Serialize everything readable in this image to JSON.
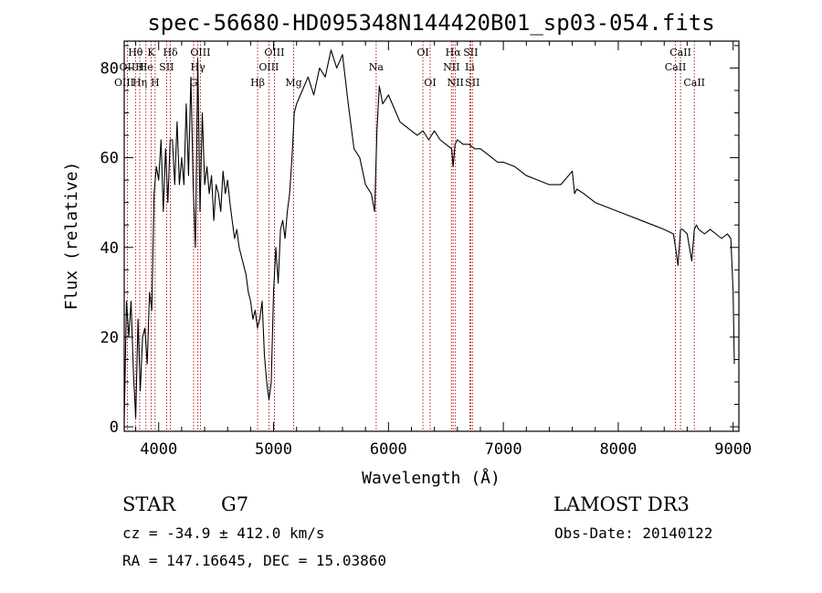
{
  "chart_data": {
    "type": "line",
    "title": "spec-56680-HD095348N144420B01_sp03-054.fits",
    "xlabel": "Wavelength (Å)",
    "ylabel": "Flux (relative)",
    "xlim": [
      3700,
      9050
    ],
    "ylim": [
      -1,
      86
    ],
    "grid": false,
    "x_ticks": [
      4000,
      5000,
      6000,
      7000,
      8000,
      9000
    ],
    "x_tick_labels": [
      "4000",
      "5000",
      "6000",
      "7000",
      "8000",
      "9000"
    ],
    "y_ticks": [
      0,
      20,
      40,
      60,
      80
    ],
    "y_tick_labels": [
      "0",
      "20",
      "40",
      "60",
      "80"
    ],
    "series": [
      {
        "x": [
          3700,
          3720,
          3740,
          3760,
          3780,
          3800,
          3820,
          3840,
          3860,
          3880,
          3900,
          3920,
          3940,
          3960,
          3980,
          4000,
          4020,
          4040,
          4060,
          4080,
          4100,
          4120,
          4140,
          4160,
          4180,
          4200,
          4220,
          4240,
          4260,
          4280,
          4300,
          4320,
          4340,
          4360,
          4380,
          4400,
          4420,
          4440,
          4460,
          4480,
          4500,
          4520,
          4540,
          4560,
          4580,
          4600,
          4620,
          4640,
          4660,
          4680,
          4700,
          4720,
          4740,
          4760,
          4780,
          4800,
          4820,
          4840,
          4860,
          4880,
          4900,
          4920,
          4940,
          4960,
          4980,
          5000,
          5020,
          5040,
          5060,
          5080,
          5100,
          5120,
          5140,
          5160,
          5180,
          5200,
          5250,
          5300,
          5350,
          5400,
          5450,
          5500,
          5550,
          5600,
          5650,
          5700,
          5750,
          5800,
          5850,
          5880,
          5900,
          5920,
          5950,
          6000,
          6050,
          6100,
          6150,
          6200,
          6250,
          6300,
          6350,
          6400,
          6450,
          6500,
          6550,
          6563,
          6580,
          6600,
          6650,
          6700,
          6750,
          6800,
          6850,
          6900,
          6950,
          7000,
          7100,
          7200,
          7300,
          7400,
          7500,
          7600,
          7620,
          7640,
          7700,
          7800,
          7900,
          8000,
          8100,
          8200,
          8300,
          8400,
          8480,
          8498,
          8520,
          8542,
          8560,
          8600,
          8640,
          8662,
          8680,
          8700,
          8750,
          8800,
          8850,
          8900,
          8950,
          8980,
          9000,
          9010
        ],
        "y": [
          1,
          28,
          20,
          28,
          12,
          2,
          24,
          8,
          20,
          22,
          14,
          30,
          26,
          52,
          58,
          55,
          64,
          48,
          62,
          50,
          64,
          64,
          54,
          68,
          54,
          60,
          54,
          72,
          56,
          78,
          54,
          40,
          82,
          48,
          70,
          54,
          58,
          52,
          56,
          46,
          54,
          52,
          48,
          57,
          52,
          55,
          50,
          46,
          42,
          44,
          40,
          38,
          36,
          34,
          30,
          28,
          24,
          26,
          22,
          24,
          28,
          16,
          10,
          6,
          10,
          30,
          40,
          32,
          44,
          46,
          42,
          48,
          52,
          60,
          70,
          72,
          75,
          78,
          74,
          80,
          78,
          84,
          80,
          83,
          72,
          62,
          60,
          54,
          52,
          48,
          66,
          76,
          72,
          74,
          71,
          68,
          67,
          66,
          65,
          66,
          64,
          66,
          64,
          63,
          62,
          58,
          63,
          64,
          63,
          63,
          62,
          62,
          61,
          60,
          59,
          59,
          58,
          56,
          55,
          54,
          54,
          57,
          52,
          53,
          52,
          50,
          49,
          48,
          47,
          46,
          45,
          44,
          43,
          40,
          36,
          44,
          44,
          43,
          37,
          44,
          45,
          44,
          43,
          44,
          43,
          42,
          43,
          42,
          30,
          14
        ]
      }
    ],
    "line_markers": [
      {
        "label": "Hθ",
        "wavelength": 3798,
        "row": 1
      },
      {
        "label": "OII",
        "wavelength": 3727,
        "row": 2
      },
      {
        "label": "OIII",
        "wavelength": 3700,
        "row": 3
      },
      {
        "label": "H",
        "wavelength": 3835,
        "row": 2
      },
      {
        "label": "Hη",
        "wavelength": 3835,
        "row": 3
      },
      {
        "label": "He",
        "wavelength": 3889,
        "row": 2
      },
      {
        "label": "K",
        "wavelength": 3934,
        "row": 1
      },
      {
        "label": "SII",
        "wavelength": 4069,
        "row": 2
      },
      {
        "label": "H",
        "wavelength": 3969,
        "row": 3
      },
      {
        "label": "Hδ",
        "wavelength": 4102,
        "row": 1
      },
      {
        "label": "OIII",
        "wavelength": 4363,
        "row": 1
      },
      {
        "label": "Hγ",
        "wavelength": 4341,
        "row": 2
      },
      {
        "label": "G",
        "wavelength": 4304,
        "row": 3
      },
      {
        "label": "Hβ",
        "wavelength": 4861,
        "row": 3
      },
      {
        "label": "OIII",
        "wavelength": 5007,
        "row": 1
      },
      {
        "label": "OIII",
        "wavelength": 4959,
        "row": 2
      },
      {
        "label": "Mg",
        "wavelength": 5175,
        "row": 3
      },
      {
        "label": "Na",
        "wavelength": 5893,
        "row": 2
      },
      {
        "label": "OI",
        "wavelength": 6300,
        "row": 1
      },
      {
        "label": "OI",
        "wavelength": 6363,
        "row": 3
      },
      {
        "label": "Hα",
        "wavelength": 6563,
        "row": 1
      },
      {
        "label": "SII",
        "wavelength": 6716,
        "row": 1
      },
      {
        "label": "NII",
        "wavelength": 6548,
        "row": 2
      },
      {
        "label": "Li",
        "wavelength": 6708,
        "row": 2
      },
      {
        "label": "NII",
        "wavelength": 6583,
        "row": 3
      },
      {
        "label": "SII",
        "wavelength": 6731,
        "row": 3
      },
      {
        "label": "CaII",
        "wavelength": 8542,
        "row": 1
      },
      {
        "label": "CaII",
        "wavelength": 8498,
        "row": 2
      },
      {
        "label": "CaII",
        "wavelength": 8662,
        "row": 3
      }
    ],
    "annotations": {
      "object_class": "STAR",
      "subclass": "G7",
      "survey": "LAMOST DR3",
      "cz_line": "cz = -34.9 ± 412.0 km/s",
      "obs_date_line": "Obs-Date: 20140122",
      "coords_line": "RA = 147.16645, DEC =  15.03860"
    }
  }
}
